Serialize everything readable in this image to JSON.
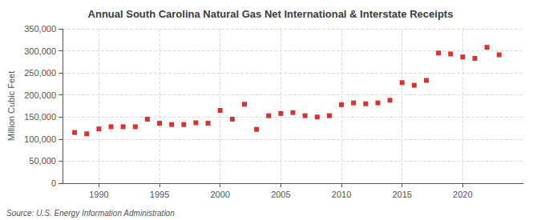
{
  "chart_data": {
    "type": "scatter",
    "title": "Annual South Carolina Natural Gas Net International & Interstate Receipts",
    "ylabel": "Million Cubic Feet",
    "annotation": "Source: U.S. Energy Information Administration",
    "x": [
      1988,
      1989,
      1990,
      1991,
      1992,
      1993,
      1994,
      1995,
      1996,
      1997,
      1998,
      1999,
      2000,
      2001,
      2002,
      2003,
      2004,
      2005,
      2006,
      2007,
      2008,
      2009,
      2010,
      2011,
      2012,
      2013,
      2014,
      2015,
      2016,
      2017,
      2018,
      2019,
      2020,
      2021,
      2022,
      2023
    ],
    "values": [
      115000,
      112000,
      123000,
      128000,
      128000,
      128000,
      145000,
      136000,
      133000,
      133000,
      137000,
      136000,
      165000,
      145000,
      179000,
      122000,
      153000,
      158000,
      160000,
      153000,
      150000,
      153000,
      178000,
      182000,
      180000,
      182000,
      188000,
      228000,
      222000,
      233000,
      295000,
      293000,
      286000,
      283000,
      308000,
      291000
    ],
    "color": "#cc0000",
    "marker": "square",
    "xlim": [
      1987,
      2025
    ],
    "xticks": [
      1990,
      1995,
      2000,
      2005,
      2010,
      2015,
      2020
    ],
    "ylim": [
      0,
      350000
    ],
    "yticks": [
      0,
      {
        "value": 50000,
        "label": "50,000"
      },
      {
        "value": 100000,
        "label": "100,000"
      },
      {
        "value": 150000,
        "label": "150,000"
      },
      {
        "value": 200000,
        "label": "200,000"
      },
      {
        "value": 250000,
        "label": "250,000"
      },
      {
        "value": 300000,
        "label": "300,000"
      },
      {
        "value": 350000,
        "label": "350,000"
      }
    ],
    "grid": true
  }
}
